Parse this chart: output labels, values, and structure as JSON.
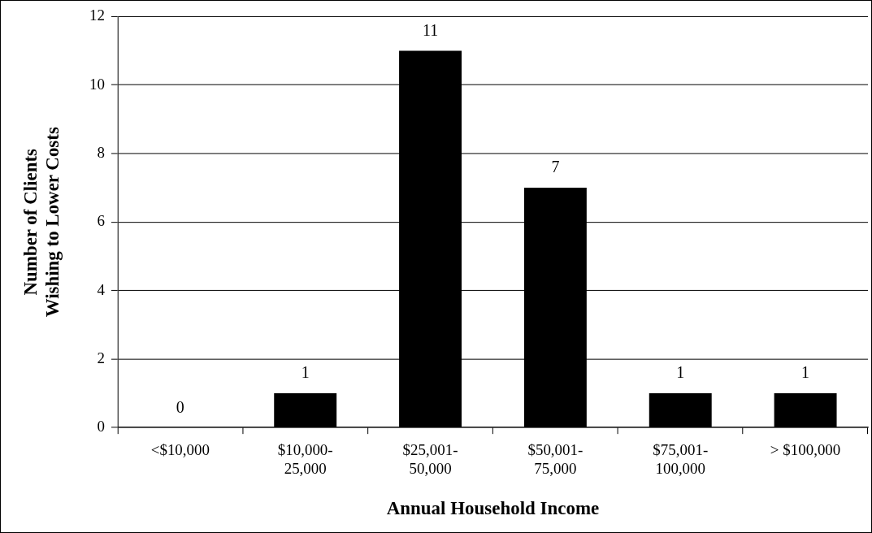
{
  "chart_data": {
    "type": "bar",
    "xlabel": "Annual Household Income",
    "ylabel": "Number of Clients\nWishing to Lower Costs",
    "categories": [
      "<$10,000",
      "$10,000-25,000",
      "$25,001-50,000",
      "$50,001-75,000",
      "$75,001-100,000",
      "> $100,000"
    ],
    "values": [
      0,
      1,
      11,
      7,
      1,
      1
    ],
    "color": "#000000",
    "ylim": [
      0,
      12
    ],
    "yticks": [
      0,
      2,
      4,
      6,
      8,
      10,
      12
    ],
    "grid": "y",
    "data_labels": true,
    "legend": false
  }
}
